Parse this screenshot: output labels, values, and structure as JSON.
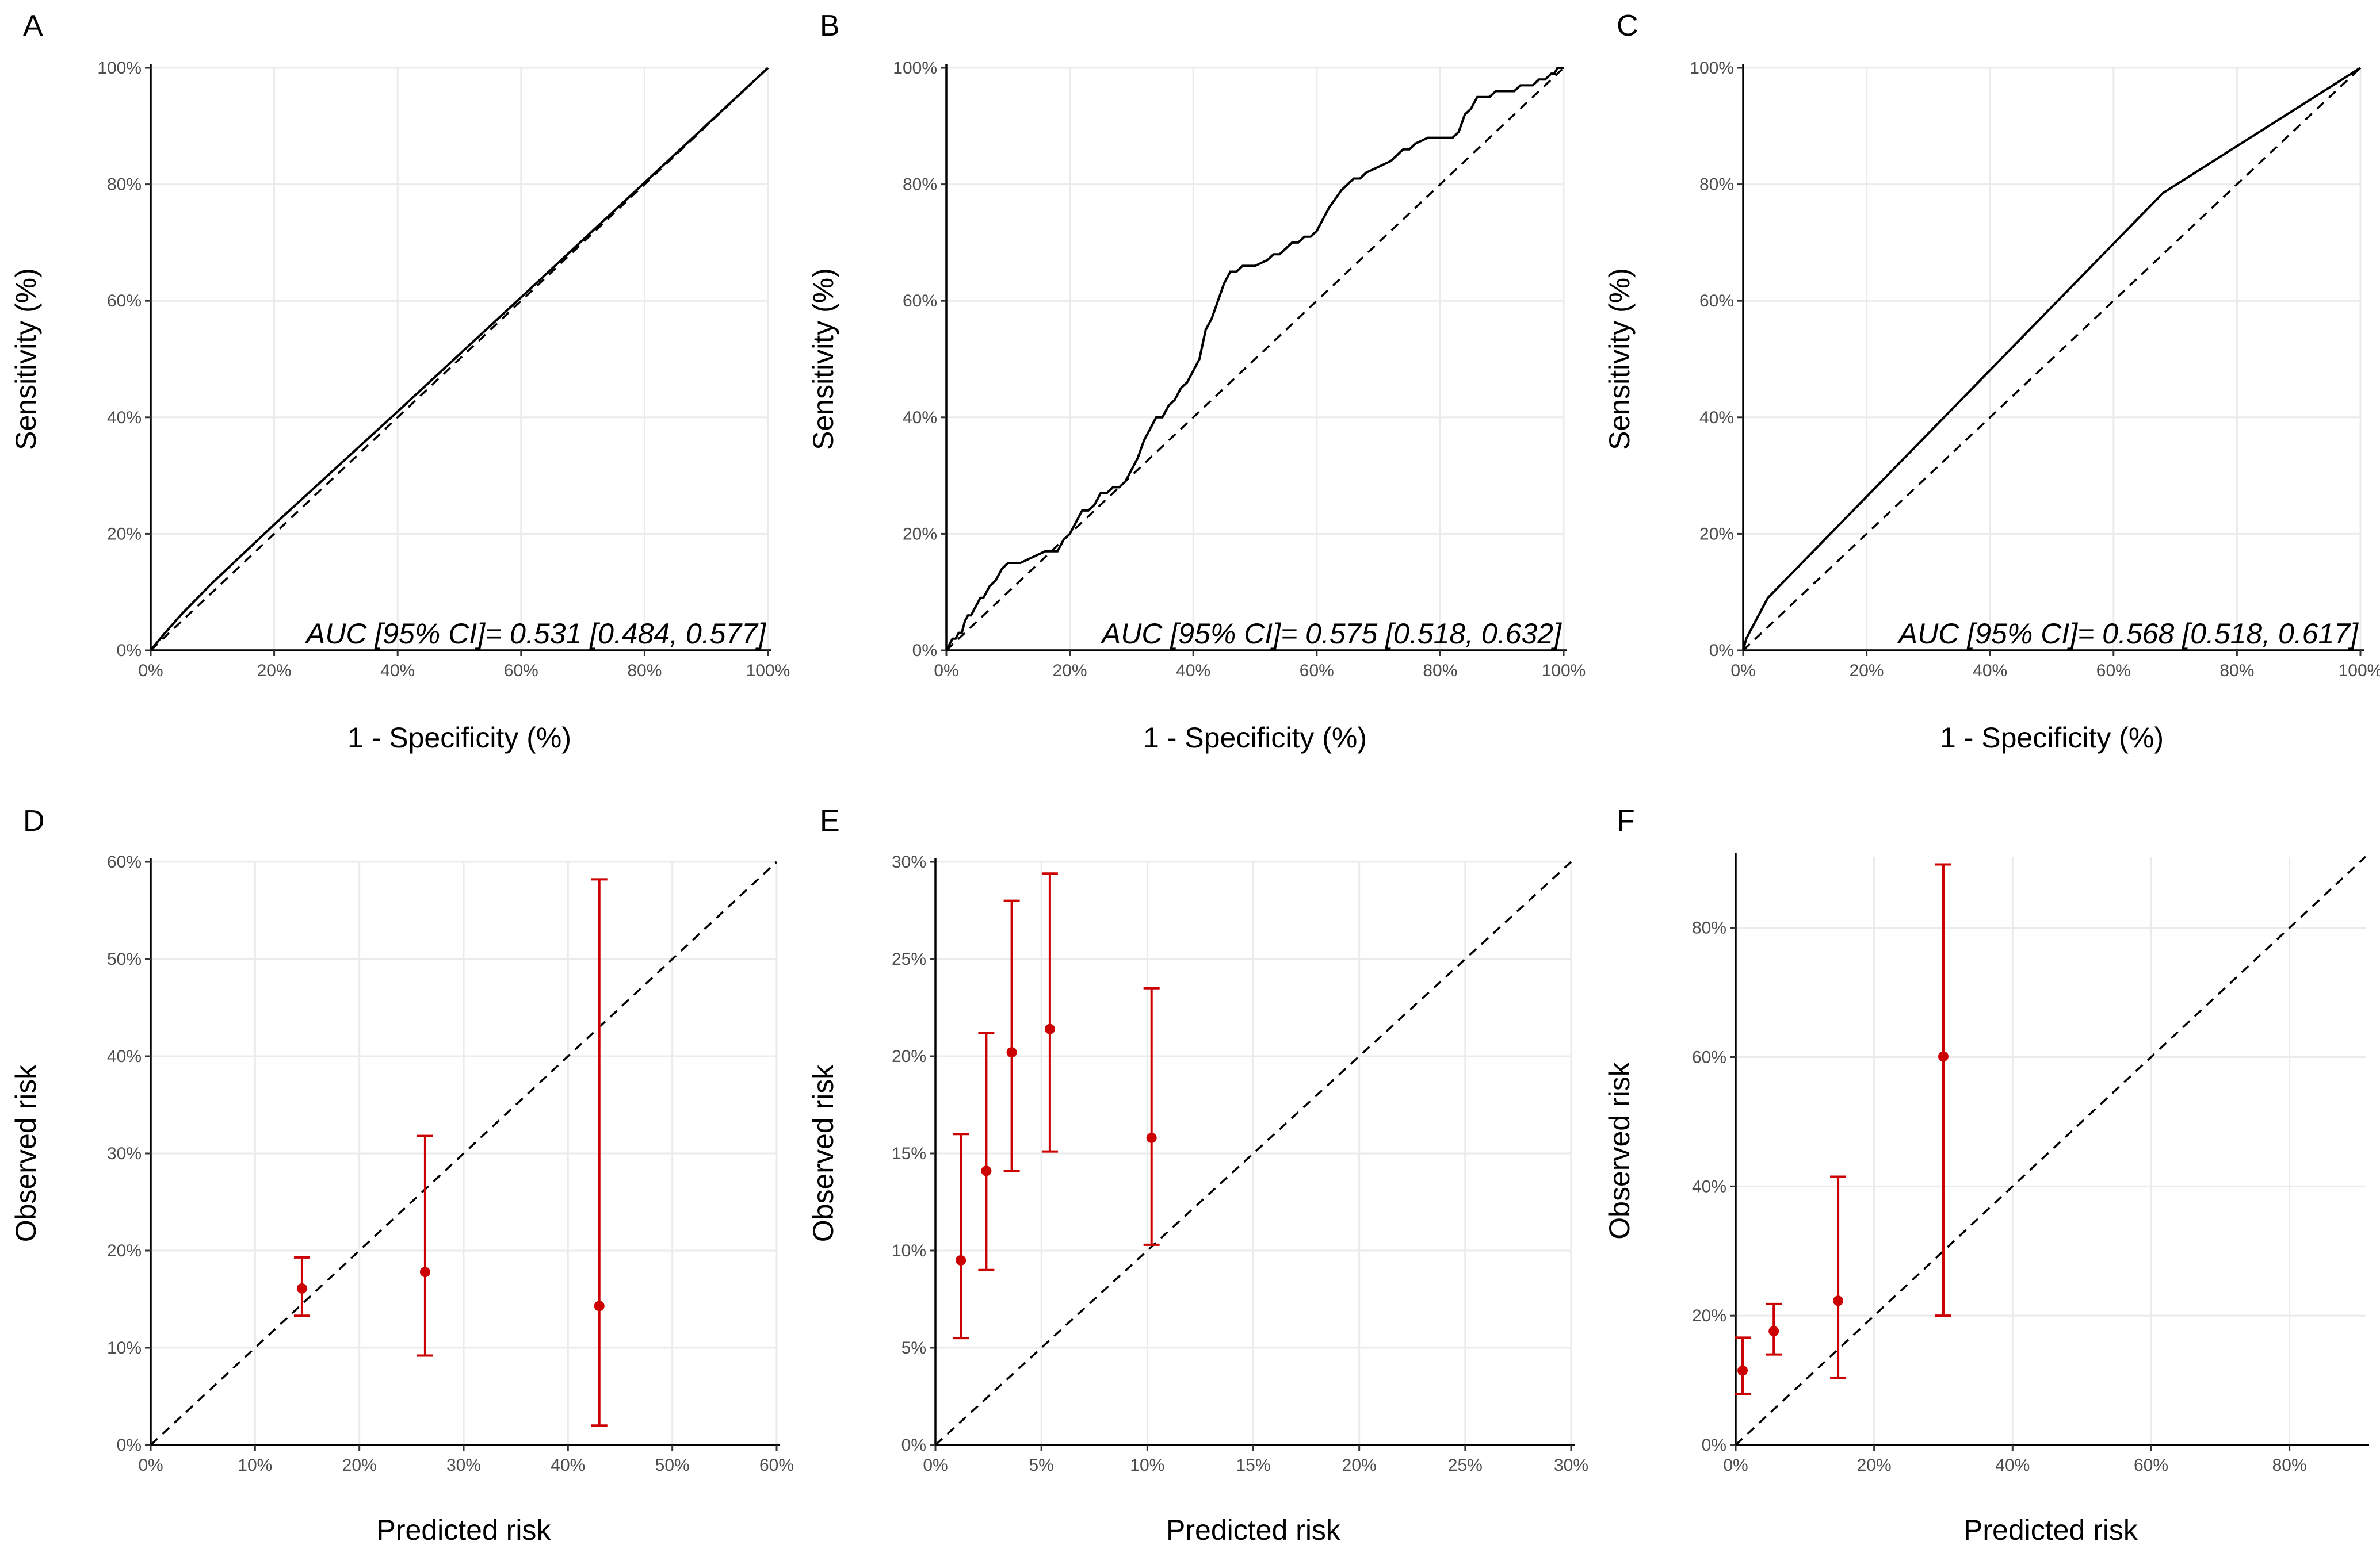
{
  "colors": {
    "curve": "#000000",
    "points": "#cc0000",
    "grid": "#ebebeb"
  },
  "chart_data": [
    {
      "id": "A",
      "type": "line",
      "panel_label": "A",
      "xlabel": "1 - Specificity (%)",
      "ylabel": "Sensitivity (%)",
      "xlim": [
        0,
        100
      ],
      "ylim": [
        0,
        100
      ],
      "xticks": [
        0,
        20,
        40,
        60,
        80,
        100
      ],
      "yticks": [
        0,
        20,
        40,
        60,
        80,
        100
      ],
      "tick_suffix": "%",
      "reference_line": [
        [
          0,
          0
        ],
        [
          100,
          100
        ]
      ],
      "series": [
        {
          "name": "ROC",
          "x": [
            0,
            1,
            2,
            5,
            10,
            20,
            40,
            60,
            80,
            100
          ],
          "y": [
            0,
            1.3,
            2.6,
            6.2,
            11.6,
            21.6,
            41.0,
            60.6,
            80.3,
            100
          ]
        }
      ],
      "annotation": "AUC [95% CI]= 0.531 [0.484, 0.577]"
    },
    {
      "id": "B",
      "type": "line",
      "panel_label": "B",
      "xlabel": "1 - Specificity (%)",
      "ylabel": "Sensitivity (%)",
      "xlim": [
        0,
        100
      ],
      "ylim": [
        0,
        100
      ],
      "xticks": [
        0,
        20,
        40,
        60,
        80,
        100
      ],
      "yticks": [
        0,
        20,
        40,
        60,
        80,
        100
      ],
      "tick_suffix": "%",
      "reference_line": [
        [
          0,
          0
        ],
        [
          100,
          100
        ]
      ],
      "series": [
        {
          "name": "ROC",
          "x": [
            0,
            0.5,
            1,
            1.5,
            2,
            2.5,
            3,
            3.5,
            4,
            5,
            5.5,
            6,
            7,
            8,
            9,
            10,
            12,
            14,
            16,
            18,
            19,
            20,
            22,
            23,
            24,
            25,
            26,
            27,
            28,
            29,
            30,
            31,
            32,
            33,
            34,
            35,
            36,
            37,
            38,
            39,
            40,
            41,
            42,
            43,
            44,
            45,
            46,
            47,
            48,
            50,
            52,
            53,
            54,
            55,
            56,
            57,
            58,
            59,
            60,
            61,
            62,
            64,
            65,
            66,
            67,
            68,
            70,
            72,
            73,
            74,
            75,
            76,
            78,
            80,
            82,
            83,
            84,
            85,
            86,
            87,
            88,
            89,
            90,
            91,
            92,
            93,
            94,
            95,
            96,
            97,
            98,
            98.5,
            99,
            99.5,
            100
          ],
          "y": [
            0,
            1,
            2,
            2,
            3,
            3,
            5,
            6,
            6,
            8,
            9,
            9,
            11,
            12,
            14,
            15,
            15,
            16,
            17,
            17,
            19,
            20,
            24,
            24,
            25,
            27,
            27,
            28,
            28,
            29,
            31,
            33,
            36,
            38,
            40,
            40,
            42,
            43,
            45,
            46,
            48,
            50,
            55,
            57,
            60,
            63,
            65,
            65,
            66,
            66,
            67,
            68,
            68,
            69,
            70,
            70,
            71,
            71,
            72,
            74,
            76,
            79,
            80,
            81,
            81,
            82,
            83,
            84,
            85,
            86,
            86,
            87,
            88,
            88,
            88,
            89,
            92,
            93,
            95,
            95,
            95,
            96,
            96,
            96,
            96,
            97,
            97,
            97,
            98,
            98,
            99,
            99,
            100,
            100,
            100
          ]
        }
      ],
      "annotation": "AUC [95% CI]= 0.575 [0.518, 0.632]"
    },
    {
      "id": "C",
      "type": "line",
      "panel_label": "C",
      "xlabel": "1 - Specificity (%)",
      "ylabel": "Sensitivity (%)",
      "xlim": [
        0,
        100
      ],
      "ylim": [
        0,
        100
      ],
      "xticks": [
        0,
        20,
        40,
        60,
        80,
        100
      ],
      "yticks": [
        0,
        20,
        40,
        60,
        80,
        100
      ],
      "tick_suffix": "%",
      "reference_line": [
        [
          0,
          0
        ],
        [
          100,
          100
        ]
      ],
      "series": [
        {
          "name": "ROC",
          "x": [
            0,
            0.5,
            1.0,
            4,
            68,
            100
          ],
          "y": [
            0,
            2,
            3,
            9,
            78.5,
            100
          ]
        }
      ],
      "annotation": "AUC [95% CI]= 0.568 [0.518, 0.617]"
    },
    {
      "id": "D",
      "type": "scatter",
      "panel_label": "D",
      "xlabel": "Predicted risk",
      "ylabel": "Observed risk",
      "xlim": [
        0,
        60
      ],
      "ylim": [
        0,
        60
      ],
      "xticks": [
        0,
        10,
        20,
        30,
        40,
        50,
        60
      ],
      "yticks": [
        0,
        10,
        20,
        30,
        40,
        50,
        60
      ],
      "tick_suffix": "%",
      "reference_line": [
        [
          0,
          0
        ],
        [
          60,
          60
        ]
      ],
      "points": [
        {
          "x": 14.5,
          "y": 16.1,
          "lower": 13.3,
          "upper": 19.3
        },
        {
          "x": 26.3,
          "y": 17.8,
          "lower": 9.2,
          "upper": 31.8
        },
        {
          "x": 43.0,
          "y": 14.3,
          "lower": 2.0,
          "upper": 58.2
        }
      ]
    },
    {
      "id": "E",
      "type": "scatter",
      "panel_label": "E",
      "xlabel": "Predicted risk",
      "ylabel": "Observed risk",
      "xlim": [
        0,
        30
      ],
      "ylim": [
        0,
        30
      ],
      "xticks": [
        0,
        5,
        10,
        15,
        20,
        25,
        30
      ],
      "yticks": [
        0,
        5,
        10,
        15,
        20,
        25,
        30
      ],
      "tick_suffix": "%",
      "reference_line": [
        [
          0,
          0
        ],
        [
          30,
          30
        ]
      ],
      "points": [
        {
          "x": 1.2,
          "y": 9.5,
          "lower": 5.5,
          "upper": 16.0
        },
        {
          "x": 2.4,
          "y": 14.1,
          "lower": 9.0,
          "upper": 21.2
        },
        {
          "x": 3.6,
          "y": 20.2,
          "lower": 14.1,
          "upper": 28.0
        },
        {
          "x": 5.4,
          "y": 21.4,
          "lower": 15.1,
          "upper": 29.4
        },
        {
          "x": 10.2,
          "y": 15.8,
          "lower": 10.3,
          "upper": 23.5
        }
      ]
    },
    {
      "id": "F",
      "type": "scatter",
      "panel_label": "F",
      "xlabel": "Predicted risk",
      "ylabel": "Observed risk",
      "xlim": [
        0,
        91
      ],
      "ylim": [
        0,
        91
      ],
      "xticks": [
        0,
        20,
        40,
        60,
        80
      ],
      "yticks": [
        0,
        20,
        40,
        60,
        80
      ],
      "tick_suffix": "%",
      "reference_line": [
        [
          0,
          0
        ],
        [
          91,
          91
        ]
      ],
      "points": [
        {
          "x": 1.0,
          "y": 11.5,
          "lower": 7.9,
          "upper": 16.6
        },
        {
          "x": 5.5,
          "y": 17.6,
          "lower": 14.0,
          "upper": 21.8
        },
        {
          "x": 14.8,
          "y": 22.3,
          "lower": 10.4,
          "upper": 41.5
        },
        {
          "x": 30.0,
          "y": 60.1,
          "lower": 20.0,
          "upper": 89.8
        }
      ]
    }
  ]
}
